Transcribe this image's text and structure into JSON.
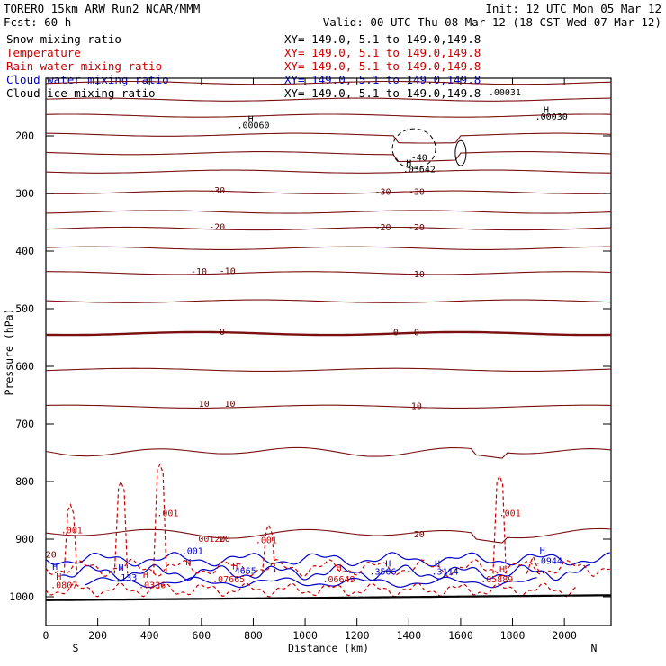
{
  "header": {
    "model_label": "TORERO  15km ARW   Run2    NCAR/MMM",
    "init_label": "Init: 12 UTC Mon 05 Mar 12",
    "fcst_label": "Fcst:   60 h",
    "valid_label": "Valid: 00 UTC Thu 08 Mar 12 (18 CST Wed 07 Mar 12)"
  },
  "legend": [
    {
      "name": "Snow mixing ratio",
      "info": "XY= 149.0,  5.1 to 149.0,149.8",
      "color": "#000000"
    },
    {
      "name": "Temperature",
      "info": "XY= 149.0,  5.1 to 149.0,149.8",
      "color": "#cc0000"
    },
    {
      "name": "Rain water mixing ratio",
      "info": "XY= 149.0,  5.1 to 149.0,149.8",
      "color": "#cc0000"
    },
    {
      "name": "Cloud water mixing ratio",
      "info": "XY= 149.0,  5.1 to 149.0,149.8",
      "color": "#0000cc"
    },
    {
      "name": "Cloud ice mixing ratio",
      "info": "XY= 149.0,  5.1 to 149.0,149.8",
      "color": "#000000"
    }
  ],
  "chart_data": {
    "type": "cross-section contour",
    "xlabel": "Distance (km)",
    "ylabel": "Pressure (hPa)",
    "xlim": [
      0,
      2180
    ],
    "ylim_hpa": [
      100,
      1050
    ],
    "x_ticks": [
      0,
      200,
      400,
      600,
      800,
      1000,
      1200,
      1400,
      1600,
      1800,
      2000
    ],
    "y_ticks": [
      200,
      300,
      400,
      500,
      600,
      700,
      800,
      900,
      1000
    ],
    "x_end_labels": {
      "left": "S",
      "right": "N"
    },
    "isotherms_celsius": [
      {
        "t": -60,
        "base": 108
      },
      {
        "t": -55,
        "base": 137
      },
      {
        "t": -50,
        "base": 165
      },
      {
        "t": -45,
        "base": 198
      },
      {
        "t": -40,
        "base": 230
      },
      {
        "t": -35,
        "base": 262
      },
      {
        "t": -30,
        "base": 298,
        "labeled": true
      },
      {
        "t": -25,
        "base": 332
      },
      {
        "t": -20,
        "base": 361,
        "labeled": true
      },
      {
        "t": -15,
        "base": 395
      },
      {
        "t": -10,
        "base": 438,
        "labeled": true
      },
      {
        "t": -5,
        "base": 487
      },
      {
        "t": 0,
        "base": 543,
        "labeled": true
      },
      {
        "t": 5,
        "base": 606
      },
      {
        "t": 10,
        "base": 670,
        "labeled": true
      },
      {
        "t": 15,
        "base": 748
      },
      {
        "t": 20,
        "base": 890,
        "labeled": true
      }
    ],
    "annotations": [
      {
        "x": 790,
        "p": 176,
        "text": "H",
        "color": "#000000"
      },
      {
        "x": 800,
        "p": 187,
        "text": ".00060",
        "color": "#000000"
      },
      {
        "x": 1930,
        "p": 160,
        "text": "H",
        "color": "#000000"
      },
      {
        "x": 1950,
        "p": 172,
        "text": ".00030",
        "color": "#000000"
      },
      {
        "x": 1440,
        "p": 243,
        "text": "-40",
        "color": "#000000"
      },
      {
        "x": 1400,
        "p": 252,
        "text": "H",
        "color": "#000000"
      },
      {
        "x": 1440,
        "p": 263,
        "text": ".03642",
        "color": "#000000"
      },
      {
        "x": 1770,
        "p": 130,
        "text": ".00031",
        "color": "#000000"
      },
      {
        "x": 660,
        "p": 300,
        "text": "-30",
        "color": "#660000"
      },
      {
        "x": 1300,
        "p": 302,
        "text": "-30",
        "color": "#660000"
      },
      {
        "x": 1430,
        "p": 302,
        "text": "-30",
        "color": "#660000"
      },
      {
        "x": 660,
        "p": 363,
        "text": "-20",
        "color": "#660000"
      },
      {
        "x": 1300,
        "p": 364,
        "text": "-20",
        "color": "#660000"
      },
      {
        "x": 1430,
        "p": 364,
        "text": "-20",
        "color": "#660000"
      },
      {
        "x": 590,
        "p": 441,
        "text": "-10",
        "color": "#660000"
      },
      {
        "x": 700,
        "p": 440,
        "text": "-10",
        "color": "#660000"
      },
      {
        "x": 1430,
        "p": 445,
        "text": "-10",
        "color": "#660000"
      },
      {
        "x": 680,
        "p": 545,
        "text": "0",
        "color": "#660000"
      },
      {
        "x": 1350,
        "p": 546,
        "text": "0",
        "color": "#660000"
      },
      {
        "x": 1430,
        "p": 546,
        "text": "0",
        "color": "#660000"
      },
      {
        "x": 610,
        "p": 670,
        "text": "10",
        "color": "#660000"
      },
      {
        "x": 710,
        "p": 670,
        "text": "10",
        "color": "#660000"
      },
      {
        "x": 1430,
        "p": 674,
        "text": "10",
        "color": "#660000"
      },
      {
        "x": 690,
        "p": 905,
        "text": "20",
        "color": "#660000"
      },
      {
        "x": 1440,
        "p": 897,
        "text": "20",
        "color": "#660000"
      },
      {
        "x": 640,
        "p": 905,
        "text": "00120",
        "color": "#cc0000"
      },
      {
        "x": 100,
        "p": 890,
        "text": ".001",
        "color": "#cc0000"
      },
      {
        "x": 470,
        "p": 860,
        "text": ".001",
        "color": "#cc0000"
      },
      {
        "x": 850,
        "p": 907,
        "text": ".001",
        "color": "#cc0000"
      },
      {
        "x": 1790,
        "p": 860,
        "text": ".001",
        "color": "#cc0000"
      },
      {
        "x": 565,
        "p": 926,
        "text": ".001",
        "color": "#0000cc"
      },
      {
        "x": 20,
        "p": 932,
        "text": "20",
        "color": "#660000"
      },
      {
        "x": 35,
        "p": 953,
        "text": "H",
        "color": "#0000cc"
      },
      {
        "x": 50,
        "p": 970,
        "text": "H",
        "color": "#cc0000"
      },
      {
        "x": 70,
        "p": 985,
        "text": ".0807",
        "color": "#cc0000"
      },
      {
        "x": 290,
        "p": 955,
        "text": "H",
        "color": "#0000cc"
      },
      {
        "x": 310,
        "p": 972,
        "text": ".133",
        "color": "#0000cc"
      },
      {
        "x": 385,
        "p": 967,
        "text": "H",
        "color": "#cc0000"
      },
      {
        "x": 410,
        "p": 985,
        "text": ".0336",
        "color": "#cc0000"
      },
      {
        "x": 550,
        "p": 945,
        "text": "H",
        "color": "#cc0000"
      },
      {
        "x": 730,
        "p": 952,
        "text": "H",
        "color": "#cc0000"
      },
      {
        "x": 770,
        "p": 960,
        "text": "4665",
        "color": "#0000cc"
      },
      {
        "x": 705,
        "p": 975,
        "text": ".07665",
        "color": "#cc0000"
      },
      {
        "x": 1130,
        "p": 955,
        "text": "H",
        "color": "#cc0000"
      },
      {
        "x": 1130,
        "p": 975,
        "text": ".06649",
        "color": "#cc0000"
      },
      {
        "x": 1320,
        "p": 948,
        "text": "H",
        "color": "#0000cc"
      },
      {
        "x": 1300,
        "p": 962,
        "text": ".3506",
        "color": "#0000cc"
      },
      {
        "x": 1510,
        "p": 948,
        "text": "H",
        "color": "#0000cc"
      },
      {
        "x": 1540,
        "p": 962,
        "text": ".3114",
        "color": "#0000cc"
      },
      {
        "x": 1760,
        "p": 958,
        "text": "H",
        "color": "#cc0000"
      },
      {
        "x": 1740,
        "p": 975,
        "text": ".05889",
        "color": "#cc0000"
      },
      {
        "x": 1915,
        "p": 925,
        "text": "H",
        "color": "#0000cc"
      },
      {
        "x": 1940,
        "p": 943,
        "text": ".0944",
        "color": "#0000cc"
      }
    ]
  }
}
